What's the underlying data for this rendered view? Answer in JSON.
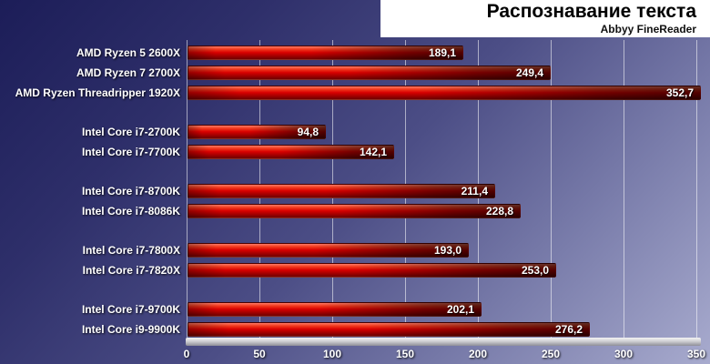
{
  "chart_data": {
    "type": "bar",
    "orientation": "horizontal",
    "title": "Распознавание текста",
    "subtitle": "Abbyy FineReader",
    "xlabel": "",
    "ylabel": "",
    "xlim": [
      0,
      350
    ],
    "x_ticks": [
      {
        "value": 0,
        "label": "0"
      },
      {
        "value": 50,
        "label": "50"
      },
      {
        "value": 100,
        "label": "100"
      },
      {
        "value": 150,
        "label": "150"
      },
      {
        "value": 200,
        "label": "200"
      },
      {
        "value": 250,
        "label": "250"
      },
      {
        "value": 300,
        "label": "300"
      },
      {
        "value": 350,
        "label": "350"
      }
    ],
    "grid": true,
    "groups": [
      {
        "items": [
          {
            "label": "AMD Ryzen 5 2600X",
            "value": 189.1,
            "display": "189,1"
          },
          {
            "label": "AMD Ryzen 7 2700X",
            "value": 249.4,
            "display": "249,4"
          },
          {
            "label": "AMD Ryzen Threadripper 1920X",
            "value": 352.7,
            "display": "352,7"
          }
        ]
      },
      {
        "items": [
          {
            "label": "Intel Core i7-2700K",
            "value": 94.8,
            "display": "94,8"
          },
          {
            "label": "Intel Core i7-7700K",
            "value": 142.1,
            "display": "142,1"
          }
        ]
      },
      {
        "items": [
          {
            "label": "Intel Core i7-8700K",
            "value": 211.4,
            "display": "211,4"
          },
          {
            "label": "Intel Core i7-8086K",
            "value": 228.8,
            "display": "228,8"
          }
        ]
      },
      {
        "items": [
          {
            "label": "Intel Core i7-7800X",
            "value": 193.0,
            "display": "193,0"
          },
          {
            "label": "Intel Core i7-7820X",
            "value": 253.0,
            "display": "253,0"
          }
        ]
      },
      {
        "items": [
          {
            "label": "Intel Core i7-9700K",
            "value": 202.1,
            "display": "202,1"
          },
          {
            "label": "Intel Core i9-9900K",
            "value": 276.2,
            "display": "276,2"
          }
        ]
      }
    ],
    "colors": {
      "bar_main": "#d80000",
      "bar_dark_end": "#4a0000",
      "background_top_left": "#1c1d58",
      "background_bottom_right": "#a8abce",
      "gridline": "#ffffff",
      "title_background": "#ffffff",
      "title_text": "#000000",
      "label_text": "#ffffff"
    },
    "legend": null
  }
}
